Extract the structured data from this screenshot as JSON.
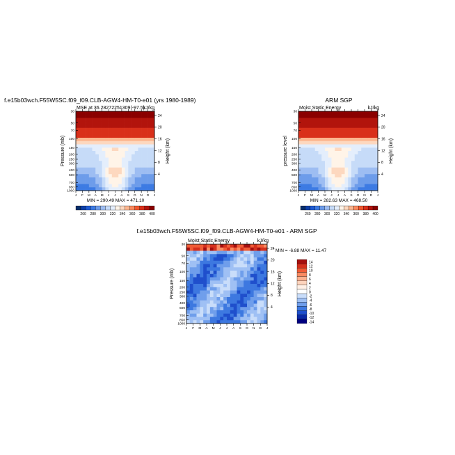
{
  "months": [
    "J",
    "F",
    "M",
    "A",
    "M",
    "J",
    "J",
    "A",
    "S",
    "O",
    "N",
    "D",
    "J"
  ],
  "pressure_ticks": [
    "30",
    "50",
    "70",
    "100",
    "150",
    "200",
    "250",
    "300",
    "400",
    "500",
    "700",
    "850",
    "1000"
  ],
  "height_ticks": [
    "24",
    "20",
    "16",
    "12",
    "8",
    "4"
  ],
  "colors": {
    "abs": [
      "#08306b",
      "#0d3fa8",
      "#1f5bd3",
      "#3d7be3",
      "#6d9cea",
      "#9dbdf2",
      "#c6dbf8",
      "#e4eefc",
      "#fff4e8",
      "#fdd8bf",
      "#fcb68f",
      "#fb8a5f",
      "#f1582f",
      "#d9301a",
      "#b2140c",
      "#8a0000"
    ],
    "diff": [
      "#000080",
      "#0b2aa6",
      "#1f4fcc",
      "#3d78e0",
      "#6f9eeb",
      "#9fc0f4",
      "#c9ddfa",
      "#ffffff",
      "#fff0e6",
      "#fdd4bd",
      "#fcb08e",
      "#f98a62",
      "#f05b36",
      "#d5301d",
      "#a50f0f"
    ]
  },
  "chart_data": [
    {
      "type": "heatmap",
      "title": "f.e15b03wch.F55W5SC.f09_f09.CLB-AGW4-HM-T0-e01 (yrs 1980-1989)",
      "subtitle_left": "MSE at 36.28272251309(-97.5)",
      "subtitle_right": "kJ/kg",
      "ylabel": "Pressure (mb)",
      "ylabel_right": "Height (km)",
      "stats": "MIN = 290.49  MAX = 471.10",
      "colorbar_ticks": [
        "260",
        "280",
        "300",
        "320",
        "340",
        "360",
        "380",
        "400"
      ],
      "x": [
        "J",
        "F",
        "M",
        "A",
        "M",
        "J",
        "J",
        "A",
        "S",
        "O",
        "N",
        "D",
        "J"
      ],
      "y_pressure": [
        30,
        50,
        70,
        100,
        150,
        200,
        250,
        300,
        400,
        500,
        700,
        850,
        1000
      ],
      "min": 290.49,
      "max": 471.1
    },
    {
      "type": "heatmap",
      "title": "ARM SGP",
      "subtitle_left": "Moist Static Energy",
      "subtitle_right": "kJ/kg",
      "ylabel": "pressure level",
      "ylabel_right": "Height (km)",
      "stats": "MIN = 282.63  MAX = 468.50",
      "colorbar_ticks": [
        "260",
        "280",
        "300",
        "320",
        "340",
        "360",
        "380",
        "400"
      ],
      "x": [
        "J",
        "F",
        "M",
        "A",
        "M",
        "J",
        "J",
        "A",
        "S",
        "O",
        "N",
        "D",
        "J"
      ],
      "y_pressure": [
        30,
        50,
        70,
        100,
        150,
        200,
        250,
        300,
        400,
        500,
        700,
        850,
        1000
      ],
      "min": 282.63,
      "max": 468.5
    },
    {
      "type": "heatmap",
      "title": "f.e15b03wch.F55W5SC.f09_f09.CLB-AGW4-HM-T0-e01 - ARM SGP",
      "subtitle_left": "Moist Static Energy",
      "subtitle_right": "kJ/kg",
      "ylabel": "Pressure (mb)",
      "ylabel_right": "Height (km)",
      "stats": "MIN = -6.88  MAX = 11.47",
      "colorbar_ticks": [
        "14",
        "12",
        "10",
        "8",
        "6",
        "4",
        "2",
        "0",
        "-2",
        "-4",
        "-6",
        "-8",
        "-10",
        "-12",
        "-14"
      ],
      "x": [
        "J",
        "F",
        "M",
        "A",
        "M",
        "J",
        "J",
        "A",
        "S",
        "O",
        "N",
        "D",
        "J"
      ],
      "y_pressure": [
        30,
        50,
        70,
        100,
        150,
        200,
        250,
        300,
        400,
        500,
        700,
        850,
        1000
      ],
      "min": -6.88,
      "max": 11.47
    }
  ]
}
